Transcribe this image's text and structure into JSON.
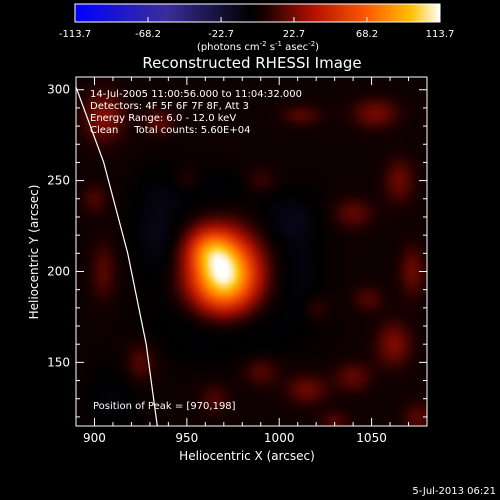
{
  "chart_data": {
    "type": "heatmap",
    "title": "Reconstructed RHESSI Image",
    "xlabel": "Heliocentric X (arcsec)",
    "ylabel": "Heliocentric Y (arcsec)",
    "xlim": [
      890,
      1080
    ],
    "ylim": [
      115,
      307
    ],
    "x_ticks": [
      900,
      950,
      1000,
      1050
    ],
    "y_ticks": [
      150,
      200,
      250,
      300
    ],
    "colorbar": {
      "label_parts": [
        "(photons cm",
        "-2",
        " s",
        "-1",
        " asec",
        "-2",
        ")"
      ],
      "range": [
        -113.7,
        113.7
      ],
      "ticks": [
        "-113.7",
        "-68.2",
        "-22.7",
        "22.7",
        "68.2",
        "113.7"
      ],
      "tick_values": [
        -113.7,
        -68.2,
        -22.7,
        22.7,
        68.2,
        113.7
      ]
    },
    "annotations": [
      "14-Jul-2005 11:00:56.000 to 11:04:32.000",
      "Detectors: 4F 5F 6F 7F 8F, Att 3",
      "Energy Range: 6.0 - 12.0 keV",
      "Clean     Total counts: 5.60E+04"
    ],
    "peak_label": "Position of Peak = [970,198]",
    "peak": {
      "x": 970,
      "y": 198,
      "value": 113.7
    },
    "blobs": [
      {
        "x": 970,
        "y": 198,
        "sx": 13,
        "sy": 15,
        "value": 113.7
      },
      {
        "x": 962,
        "y": 213,
        "sx": 9,
        "sy": 8,
        "value": 35
      },
      {
        "x": 905,
        "y": 285,
        "sx": 8,
        "sy": 10,
        "value": 26
      },
      {
        "x": 935,
        "y": 282,
        "sx": 6,
        "sy": 5,
        "value": 18
      },
      {
        "x": 1012,
        "y": 286,
        "sx": 8,
        "sy": 4,
        "value": 16
      },
      {
        "x": 1052,
        "y": 287,
        "sx": 9,
        "sy": 6,
        "value": 22
      },
      {
        "x": 1065,
        "y": 250,
        "sx": 6,
        "sy": 9,
        "value": 20
      },
      {
        "x": 1040,
        "y": 232,
        "sx": 8,
        "sy": 6,
        "value": 18
      },
      {
        "x": 1072,
        "y": 200,
        "sx": 5,
        "sy": 10,
        "value": 20
      },
      {
        "x": 1048,
        "y": 185,
        "sx": 6,
        "sy": 5,
        "value": 15
      },
      {
        "x": 1062,
        "y": 160,
        "sx": 7,
        "sy": 9,
        "value": 24
      },
      {
        "x": 1040,
        "y": 142,
        "sx": 7,
        "sy": 6,
        "value": 18
      },
      {
        "x": 1015,
        "y": 135,
        "sx": 8,
        "sy": 6,
        "value": 20
      },
      {
        "x": 990,
        "y": 145,
        "sx": 7,
        "sy": 6,
        "value": 16
      },
      {
        "x": 965,
        "y": 130,
        "sx": 6,
        "sy": 6,
        "value": 14
      },
      {
        "x": 925,
        "y": 150,
        "sx": 6,
        "sy": 8,
        "value": 16
      },
      {
        "x": 905,
        "y": 200,
        "sx": 5,
        "sy": 12,
        "value": 16
      },
      {
        "x": 900,
        "y": 240,
        "sx": 5,
        "sy": 6,
        "value": 14
      },
      {
        "x": 990,
        "y": 250,
        "sx": 6,
        "sy": 5,
        "value": 12
      },
      {
        "x": 950,
        "y": 250,
        "sx": 5,
        "sy": 5,
        "value": 12
      },
      {
        "x": 1020,
        "y": 180,
        "sx": 5,
        "sy": 5,
        "value": 12
      },
      {
        "x": 1075,
        "y": 120,
        "sx": 6,
        "sy": 6,
        "value": 16
      },
      {
        "x": 1030,
        "y": 118,
        "sx": 6,
        "sy": 4,
        "value": 14
      },
      {
        "x": 970,
        "y": 170,
        "sx": 24,
        "sy": 12,
        "value": -14
      },
      {
        "x": 935,
        "y": 220,
        "sx": 10,
        "sy": 20,
        "value": -12
      },
      {
        "x": 1005,
        "y": 230,
        "sx": 12,
        "sy": 10,
        "value": -10
      },
      {
        "x": 1010,
        "y": 200,
        "sx": 10,
        "sy": 18,
        "value": -9
      },
      {
        "x": 960,
        "y": 245,
        "sx": 18,
        "sy": 8,
        "value": -8
      },
      {
        "x": 910,
        "y": 130,
        "sx": 10,
        "sy": 12,
        "value": -8
      }
    ],
    "limb_curve": [
      [
        888,
        307
      ],
      [
        905,
        260
      ],
      [
        918,
        210
      ],
      [
        928,
        160
      ],
      [
        934,
        115
      ]
    ]
  },
  "timestamp": "5-Jul-2013 06:21"
}
